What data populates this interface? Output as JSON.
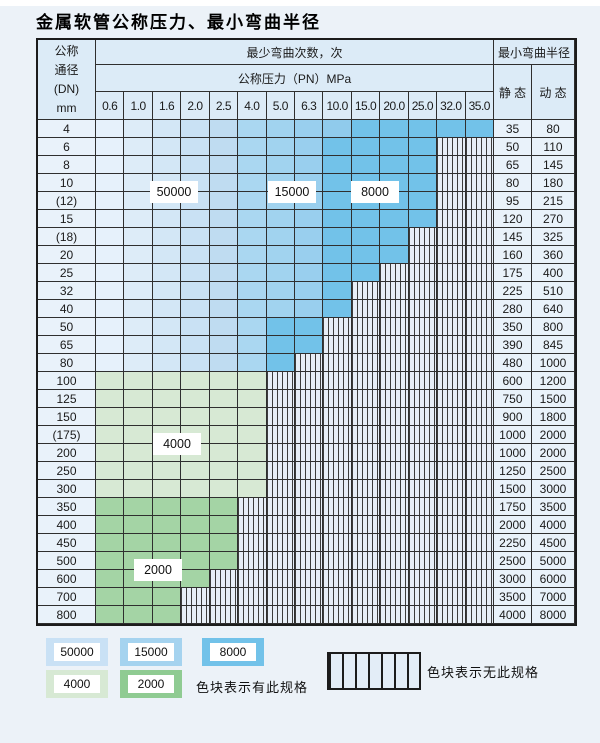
{
  "title": "金属软管公称压力、最小弯曲半径",
  "table": {
    "dn_header_lines": [
      "公称",
      "通径",
      "(DN)",
      "mm"
    ],
    "cycles_header": "最少弯曲次数，次",
    "pressure_header": "公称压力（PN）MPa",
    "pressures": [
      "0.6",
      "1.0",
      "1.6",
      "2.0",
      "2.5",
      "4.0",
      "5.0",
      "6.3",
      "10.0",
      "15.0",
      "20.0",
      "25.0",
      "32.0",
      "35.0"
    ],
    "radius_header": "最小弯曲半径",
    "static_header": "静 态",
    "dynamic_header": "动 态",
    "rows": [
      {
        "dn": "4",
        "static": "35",
        "dynamic": "80",
        "segments": [
          [
            "P",
            5
          ],
          [
            "M",
            4
          ],
          [
            "D",
            5
          ]
        ]
      },
      {
        "dn": "6",
        "static": "50",
        "dynamic": "110",
        "segments": [
          [
            "P",
            5
          ],
          [
            "M",
            3
          ],
          [
            "D",
            4
          ]
        ]
      },
      {
        "dn": "8",
        "static": "65",
        "dynamic": "145",
        "segments": [
          [
            "P",
            5
          ],
          [
            "M",
            3
          ],
          [
            "D",
            4
          ]
        ]
      },
      {
        "dn": "10",
        "static": "80",
        "dynamic": "180",
        "segments": [
          [
            "P",
            5
          ],
          [
            "M",
            3
          ],
          [
            "D",
            4
          ]
        ]
      },
      {
        "dn": "(12)",
        "static": "95",
        "dynamic": "215",
        "segments": [
          [
            "P",
            5
          ],
          [
            "M",
            3
          ],
          [
            "D",
            4
          ]
        ]
      },
      {
        "dn": "15",
        "static": "120",
        "dynamic": "270",
        "segments": [
          [
            "P",
            5
          ],
          [
            "M",
            3
          ],
          [
            "D",
            4
          ]
        ]
      },
      {
        "dn": "(18)",
        "static": "145",
        "dynamic": "325",
        "segments": [
          [
            "P",
            5
          ],
          [
            "M",
            3
          ],
          [
            "D",
            3
          ]
        ]
      },
      {
        "dn": "20",
        "static": "160",
        "dynamic": "360",
        "segments": [
          [
            "P",
            5
          ],
          [
            "M",
            3
          ],
          [
            "D",
            3
          ]
        ]
      },
      {
        "dn": "25",
        "static": "175",
        "dynamic": "400",
        "segments": [
          [
            "P",
            5
          ],
          [
            "M",
            3
          ],
          [
            "D",
            2
          ]
        ]
      },
      {
        "dn": "32",
        "static": "225",
        "dynamic": "510",
        "segments": [
          [
            "P",
            5
          ],
          [
            "M",
            3
          ],
          [
            "D",
            1
          ]
        ]
      },
      {
        "dn": "40",
        "static": "280",
        "dynamic": "640",
        "segments": [
          [
            "P",
            5
          ],
          [
            "M",
            3
          ],
          [
            "D",
            1
          ]
        ]
      },
      {
        "dn": "50",
        "static": "350",
        "dynamic": "800",
        "segments": [
          [
            "P",
            5
          ],
          [
            "M",
            1
          ],
          [
            "D",
            2
          ]
        ]
      },
      {
        "dn": "65",
        "static": "390",
        "dynamic": "845",
        "segments": [
          [
            "P",
            5
          ],
          [
            "M",
            1
          ],
          [
            "D",
            2
          ]
        ]
      },
      {
        "dn": "80",
        "static": "480",
        "dynamic": "1000",
        "segments": [
          [
            "P",
            5
          ],
          [
            "M",
            1
          ],
          [
            "D",
            1
          ]
        ]
      },
      {
        "dn": "100",
        "static": "600",
        "dynamic": "1200",
        "segments": [
          [
            "G",
            6
          ]
        ]
      },
      {
        "dn": "125",
        "static": "750",
        "dynamic": "1500",
        "segments": [
          [
            "G",
            6
          ]
        ]
      },
      {
        "dn": "150",
        "static": "900",
        "dynamic": "1800",
        "segments": [
          [
            "G",
            6
          ]
        ]
      },
      {
        "dn": "(175)",
        "static": "1000",
        "dynamic": "2000",
        "segments": [
          [
            "G",
            6
          ]
        ]
      },
      {
        "dn": "200",
        "static": "1000",
        "dynamic": "2000",
        "segments": [
          [
            "G",
            6
          ]
        ]
      },
      {
        "dn": "250",
        "static": "1250",
        "dynamic": "2500",
        "segments": [
          [
            "G",
            6
          ]
        ]
      },
      {
        "dn": "300",
        "static": "1500",
        "dynamic": "3000",
        "segments": [
          [
            "G",
            6
          ]
        ]
      },
      {
        "dn": "350",
        "static": "1750",
        "dynamic": "3500",
        "segments": [
          [
            "g",
            5
          ]
        ]
      },
      {
        "dn": "400",
        "static": "2000",
        "dynamic": "4000",
        "segments": [
          [
            "g",
            5
          ]
        ]
      },
      {
        "dn": "450",
        "static": "2250",
        "dynamic": "4500",
        "segments": [
          [
            "g",
            5
          ]
        ]
      },
      {
        "dn": "500",
        "static": "2500",
        "dynamic": "5000",
        "segments": [
          [
            "g",
            5
          ]
        ]
      },
      {
        "dn": "600",
        "static": "3000",
        "dynamic": "6000",
        "segments": [
          [
            "g",
            4
          ]
        ]
      },
      {
        "dn": "700",
        "static": "3500",
        "dynamic": "7000",
        "segments": [
          [
            "g",
            3
          ]
        ]
      },
      {
        "dn": "800",
        "static": "4000",
        "dynamic": "8000",
        "segments": [
          [
            "g",
            3
          ]
        ]
      }
    ]
  },
  "band_colors": {
    "band_50000": [
      "#e6f1fb",
      "#ddecf8",
      "#d3e7f6",
      "#c9e1f4",
      "#bfdcf1"
    ],
    "band_15000": [
      "#aad7f1",
      "#a1d3ef",
      "#99cfee",
      "#90cbec"
    ],
    "band_8000": "#72c2e9",
    "band_4000": "#d7e9d4",
    "band_2000": "#a4d4a5",
    "hatch_bg": "#e7eef7",
    "hatch_line": "#3c3c3c"
  },
  "overlays": {
    "cycles_50000": "50000",
    "cycles_15000": "15000",
    "cycles_8000": "8000",
    "cycles_4000": "4000",
    "cycles_2000": "2000"
  },
  "legend": {
    "items": [
      {
        "label": "50000",
        "color": "#c9e1f5"
      },
      {
        "label": "15000",
        "color": "#a5d3ef"
      },
      {
        "label": "8000",
        "color": "#72c2e9"
      },
      {
        "label": "4000",
        "color": "#d7e9d4"
      },
      {
        "label": "2000",
        "color": "#8fcb92"
      }
    ],
    "has_spec_note": "色块表示有此规格",
    "no_spec_note": "色块表示无此规格"
  }
}
